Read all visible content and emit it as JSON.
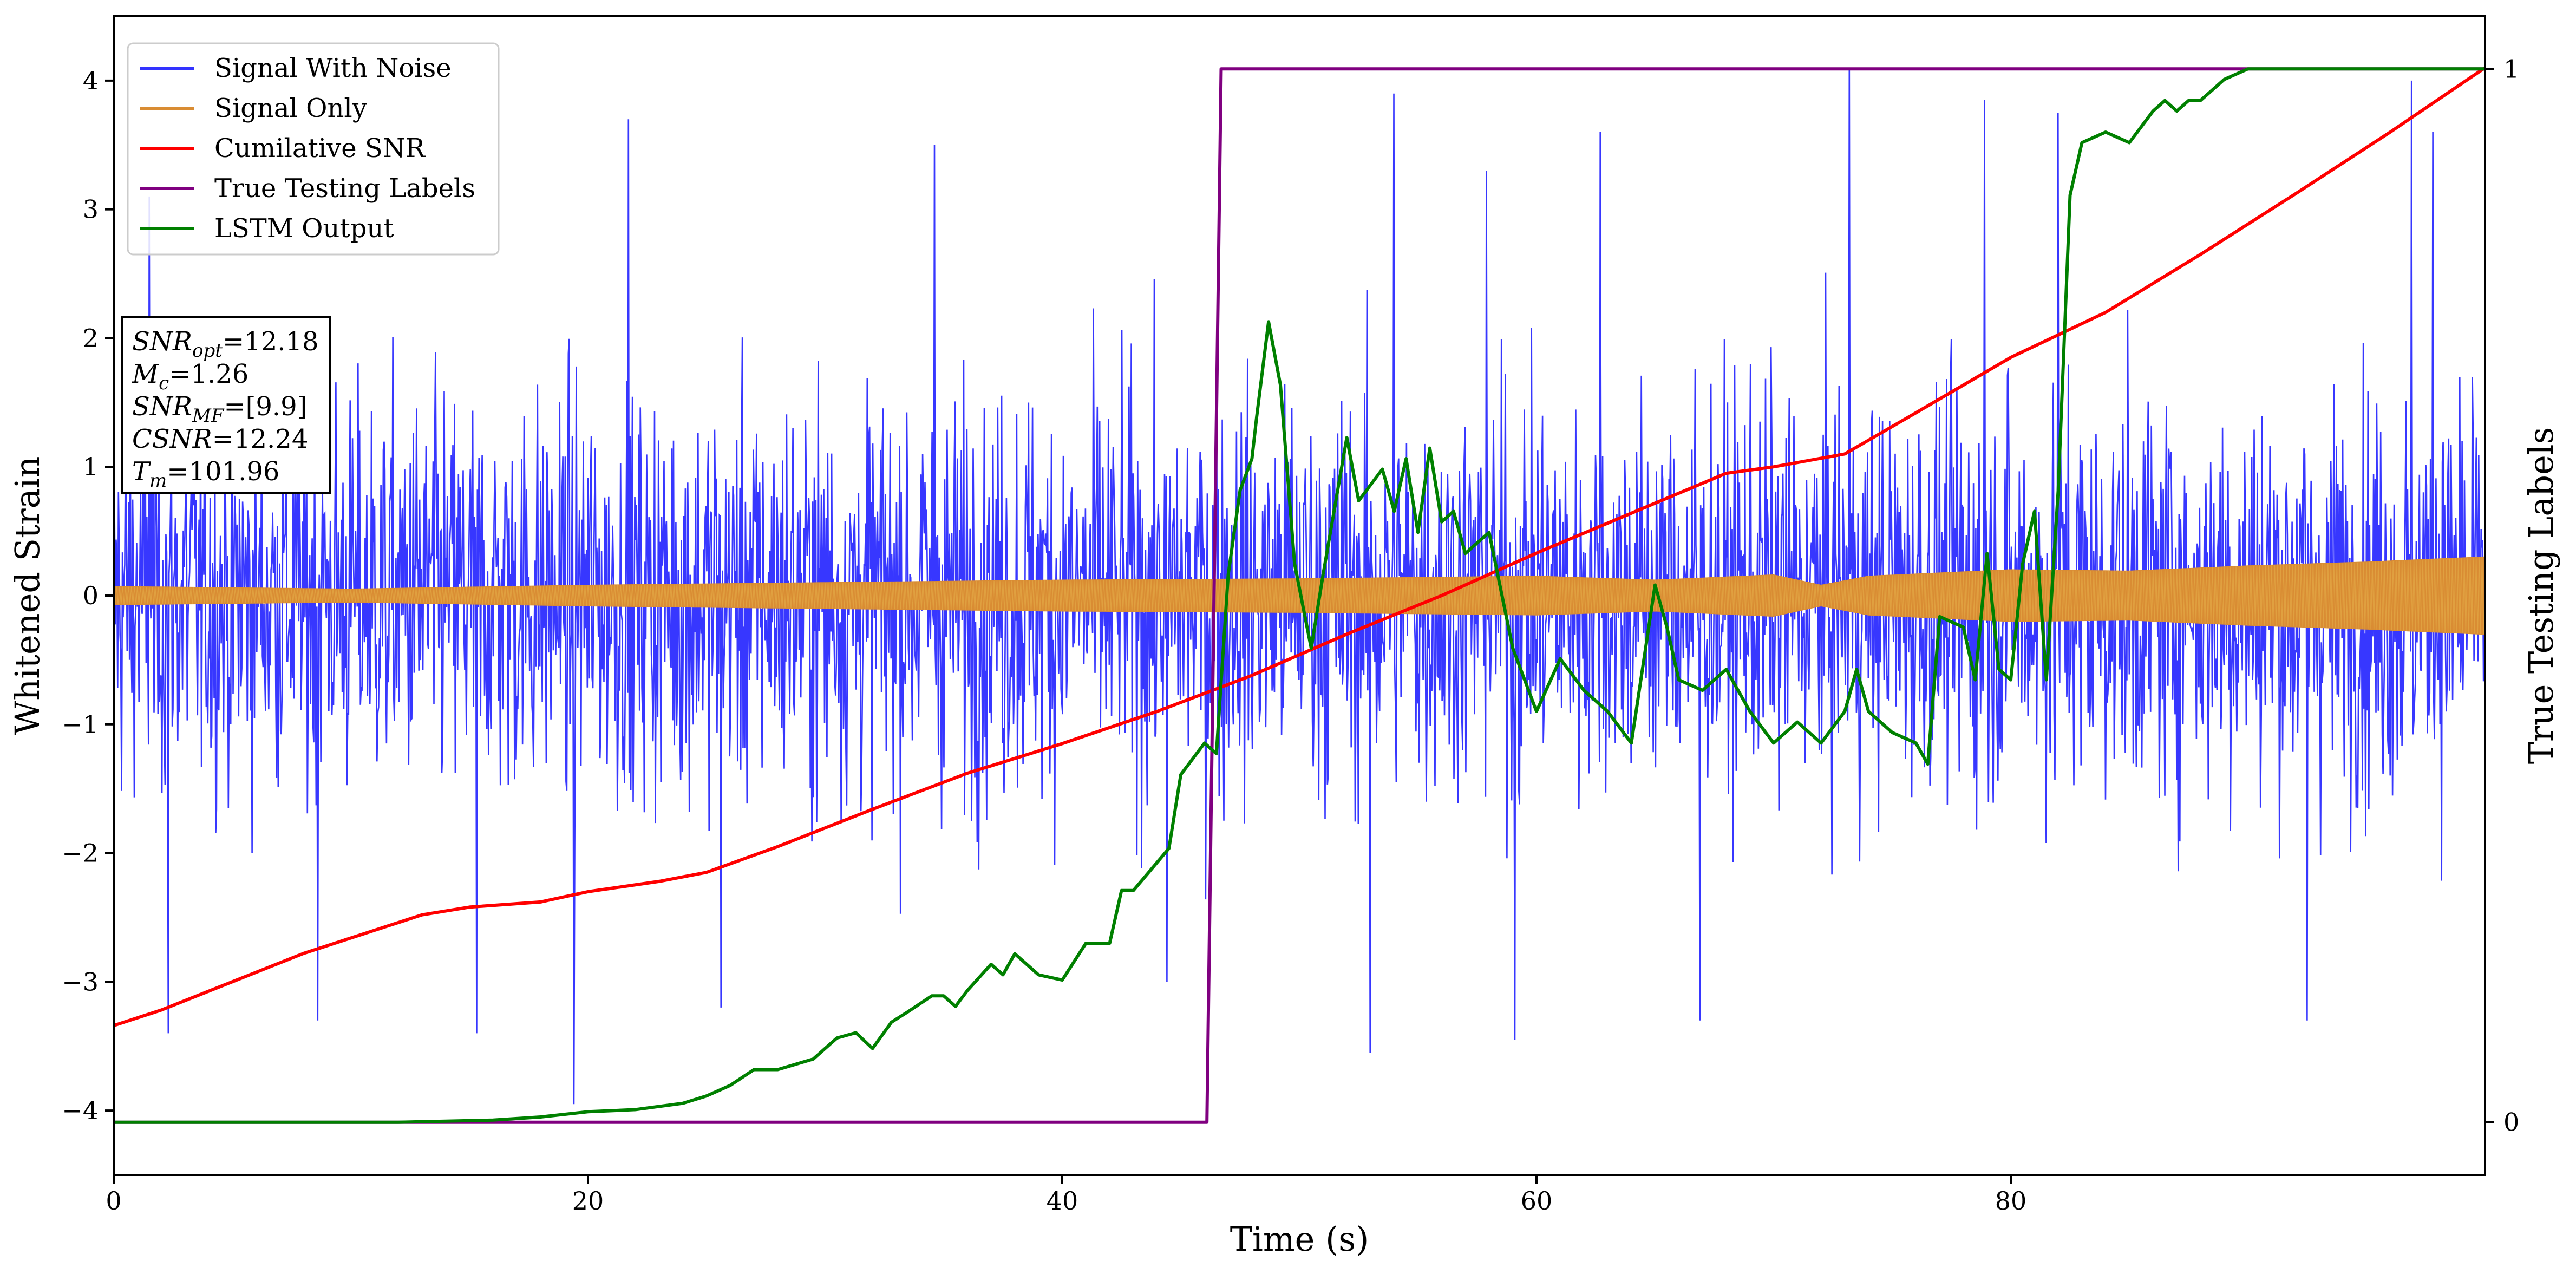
{
  "chart_data": {
    "type": "line",
    "xlabel": "Time (s)",
    "ylabel": "Whitened Strain",
    "y2label": "True Testing Labels",
    "xlim": [
      0,
      100
    ],
    "ylim": [
      -4.5,
      4.5
    ],
    "y2lim": [
      -0.05,
      1.05
    ],
    "xticks": [
      0,
      20,
      40,
      60,
      80
    ],
    "yticks": [
      -4,
      -3,
      -2,
      -1,
      0,
      1,
      2,
      3,
      4
    ],
    "y2ticks": [
      0,
      1
    ],
    "legend_position": "upper-left",
    "grid": false,
    "colors": {
      "noise": "#3333ff",
      "signal": "#d98c33",
      "snr": "#ff0000",
      "labels": "#800080",
      "lstm": "#008000"
    },
    "series": [
      {
        "name": "Signal With Noise",
        "key": "noise",
        "axis": "left",
        "note_envelope_lower": [
          -2.4,
          -2.2,
          -2.6,
          -2.3,
          -2.4,
          -2.5,
          -2.3,
          -2.6,
          -2.4,
          -2.3,
          -2.5,
          -2.2,
          -2.4,
          -2.6,
          -2.4,
          -2.3,
          -2.5,
          -2.4,
          -2.3,
          -2.4,
          -2.6
        ],
        "note_envelope_upper": [
          2.3,
          2.5,
          2.4,
          2.2,
          2.5,
          2.4,
          2.6,
          2.3,
          2.4,
          2.5,
          2.3,
          2.4,
          2.6,
          2.4,
          2.3,
          2.5,
          2.4,
          2.2,
          2.5,
          2.4,
          2.6
        ],
        "peaks": [
          {
            "x": 1.5,
            "y": 3.1
          },
          {
            "x": 2.3,
            "y": -3.4
          },
          {
            "x": 8.6,
            "y": -3.3
          },
          {
            "x": 15.3,
            "y": -3.4
          },
          {
            "x": 19.4,
            "y": -3.95
          },
          {
            "x": 21.7,
            "y": 3.7
          },
          {
            "x": 25.6,
            "y": -3.2
          },
          {
            "x": 34.6,
            "y": 3.5
          },
          {
            "x": 44.4,
            "y": -3.0
          },
          {
            "x": 54.0,
            "y": 3.9
          },
          {
            "x": 53.0,
            "y": -3.55
          },
          {
            "x": 57.9,
            "y": 3.3
          },
          {
            "x": 59.1,
            "y": -3.45
          },
          {
            "x": 62.7,
            "y": 3.6
          },
          {
            "x": 66.9,
            "y": -3.3
          },
          {
            "x": 73.2,
            "y": 4.1
          },
          {
            "x": 78.9,
            "y": 3.85
          },
          {
            "x": 82.0,
            "y": 3.75
          },
          {
            "x": 92.5,
            "y": -3.3
          },
          {
            "x": 96.9,
            "y": 4.0
          },
          {
            "x": 97.8,
            "y": 3.6
          }
        ]
      },
      {
        "name": "Signal Only",
        "key": "signal",
        "axis": "left",
        "envelope_x": [
          0,
          10,
          20,
          30,
          40,
          50,
          60,
          65,
          70,
          72,
          74,
          80,
          85,
          90,
          95,
          100
        ],
        "envelope_amp": [
          0.07,
          0.05,
          0.08,
          0.1,
          0.12,
          0.13,
          0.15,
          0.12,
          0.16,
          0.08,
          0.15,
          0.2,
          0.19,
          0.23,
          0.26,
          0.3
        ]
      },
      {
        "name": "Cumilative SNR",
        "key": "snr",
        "axis": "left",
        "x": [
          0,
          2,
          5,
          8,
          11,
          13,
          15,
          18,
          20,
          23,
          25,
          28,
          32,
          36,
          40,
          44,
          48,
          52,
          56,
          60,
          64,
          68,
          70,
          73,
          76,
          80,
          84,
          88,
          92,
          96,
          100
        ],
        "y": [
          -3.34,
          -3.22,
          -3.0,
          -2.78,
          -2.6,
          -2.48,
          -2.42,
          -2.38,
          -2.3,
          -2.22,
          -2.15,
          -1.95,
          -1.66,
          -1.38,
          -1.15,
          -0.9,
          -0.62,
          -0.3,
          0.0,
          0.33,
          0.64,
          0.95,
          1.0,
          1.1,
          1.42,
          1.85,
          2.2,
          2.65,
          3.12,
          3.6,
          4.1
        ]
      },
      {
        "name": "True Testing Labels",
        "key": "labels",
        "axis": "right",
        "x": [
          0,
          46.1,
          46.7,
          100
        ],
        "y": [
          0,
          0,
          1,
          1
        ]
      },
      {
        "name": "LSTM Output",
        "key": "lstm",
        "axis": "right",
        "x": [
          0,
          12,
          16,
          18,
          20,
          22,
          24,
          25,
          26,
          27,
          28,
          29.5,
          30.5,
          31.3,
          32,
          32.8,
          33.5,
          34.5,
          35,
          35.5,
          36,
          37,
          37.5,
          38,
          39,
          40,
          41,
          42,
          42.5,
          43,
          44.5,
          45,
          46,
          46.5,
          47,
          47.5,
          48,
          48.2,
          48.7,
          49.2,
          49.8,
          50.5,
          51,
          52,
          52.5,
          53.5,
          54,
          54.5,
          55,
          55.5,
          56,
          56.5,
          57,
          58,
          59,
          60,
          61,
          62,
          63,
          64,
          65,
          65.5,
          66,
          67,
          68,
          69,
          70,
          71,
          72,
          73,
          73.5,
          74,
          75,
          76,
          76.5,
          77,
          78,
          78.5,
          79,
          79.5,
          80,
          80.5,
          81,
          81.5,
          82,
          82.5,
          83,
          84,
          85,
          86,
          86.5,
          87,
          87.5,
          88,
          89,
          90,
          92,
          100
        ],
        "y": [
          0,
          0,
          0.002,
          0.005,
          0.01,
          0.012,
          0.018,
          0.025,
          0.035,
          0.05,
          0.05,
          0.06,
          0.08,
          0.085,
          0.07,
          0.095,
          0.105,
          0.12,
          0.12,
          0.11,
          0.125,
          0.15,
          0.14,
          0.16,
          0.14,
          0.135,
          0.17,
          0.17,
          0.22,
          0.22,
          0.26,
          0.33,
          0.36,
          0.35,
          0.52,
          0.6,
          0.63,
          0.67,
          0.76,
          0.7,
          0.53,
          0.45,
          0.52,
          0.65,
          0.59,
          0.62,
          0.58,
          0.63,
          0.56,
          0.64,
          0.57,
          0.58,
          0.54,
          0.56,
          0.45,
          0.39,
          0.44,
          0.41,
          0.39,
          0.36,
          0.51,
          0.47,
          0.42,
          0.41,
          0.43,
          0.39,
          0.36,
          0.38,
          0.36,
          0.39,
          0.43,
          0.39,
          0.37,
          0.36,
          0.34,
          0.48,
          0.47,
          0.42,
          0.54,
          0.43,
          0.42,
          0.53,
          0.58,
          0.42,
          0.6,
          0.88,
          0.93,
          0.94,
          0.93,
          0.96,
          0.97,
          0.96,
          0.97,
          0.97,
          0.99,
          1.0,
          1.0,
          1.0
        ]
      }
    ],
    "annotation": {
      "lines": [
        {
          "symbol": "SNR",
          "sub": "opt",
          "value": "=12.18"
        },
        {
          "symbol": "M",
          "sub": "c",
          "value": "=1.26"
        },
        {
          "symbol": "SNR",
          "sub": "MF",
          "value": "=[9.9]"
        },
        {
          "symbol": "CSNR",
          "sub": "",
          "value": "=12.24"
        },
        {
          "symbol": "T",
          "sub": "m",
          "value": "=101.96"
        }
      ]
    }
  }
}
